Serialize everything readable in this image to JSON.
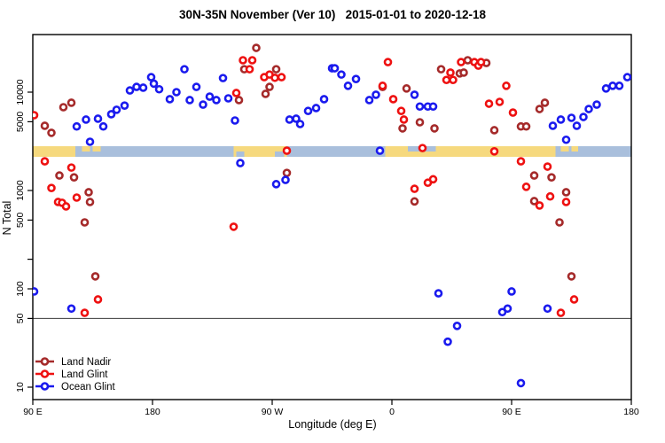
{
  "title": "30N-35N November (Ver 10)   2015-01-01 to 2020-12-18",
  "chart_data": {
    "type": "scatter",
    "title": "30N-35N November (Ver 10)   2015-01-01 to 2020-12-18",
    "xlabel": "Longitude (deg E)",
    "ylabel": "N Total",
    "x_axis": {
      "range": [
        90,
        540
      ],
      "ticks": [
        90,
        180,
        270,
        360,
        450,
        540
      ],
      "tick_labels": [
        "90 E",
        "180",
        "90 W",
        "0",
        "90 E",
        "180"
      ]
    },
    "y_axis": {
      "scale": "log",
      "range": [
        7.5,
        38500
      ],
      "ticks": [
        10,
        50,
        100,
        500,
        1000,
        5000,
        10000
      ],
      "tick_labels": [
        "10",
        "50",
        "100",
        "500",
        "1000",
        "5000",
        "10000"
      ],
      "minor_ticks": [
        200
      ]
    },
    "reference_line_y": 50,
    "grid": "off",
    "legend": {
      "position": "bottom-left",
      "entries": [
        "Land Nadir",
        "Land Glint",
        "Ocean Glint"
      ]
    },
    "map_strip": {
      "description": "land/ocean strip for 30N-35N latitude band vs longitude",
      "land_color": "#F6D97E",
      "ocean_color": "#A9BFDC",
      "n_top": 2820,
      "n_bottom": 2200,
      "segments": [
        {
          "lon0": 90,
          "lon1": 122,
          "type": "land"
        },
        {
          "lon0": 122,
          "lon1": 241,
          "type": "ocean"
        },
        {
          "lon0": 241,
          "lon1": 281,
          "type": "land"
        },
        {
          "lon0": 281,
          "lon1": 355,
          "type": "ocean"
        },
        {
          "lon0": 355,
          "lon1": 483,
          "type": "land"
        },
        {
          "lon0": 483,
          "lon1": 540,
          "type": "ocean"
        }
      ],
      "details": [
        {
          "lon0": 127,
          "lon1": 133,
          "half": "top",
          "type": "land"
        },
        {
          "lon0": 135,
          "lon1": 141,
          "half": "top",
          "type": "land"
        },
        {
          "lon0": 243,
          "lon1": 249,
          "half": "bottom",
          "type": "ocean"
        },
        {
          "lon0": 272,
          "lon1": 279,
          "half": "bottom",
          "type": "ocean"
        },
        {
          "lon0": 372,
          "lon1": 383,
          "half": "top",
          "type": "ocean"
        },
        {
          "lon0": 385,
          "lon1": 393,
          "half": "top",
          "type": "ocean"
        },
        {
          "lon0": 487,
          "lon1": 493,
          "half": "top",
          "type": "land"
        },
        {
          "lon0": 495,
          "lon1": 500,
          "half": "top",
          "type": "land"
        }
      ]
    },
    "series": [
      {
        "name": "Land Nadir",
        "color": "#A52A2A",
        "points": [
          [
            99,
            4550
          ],
          [
            104,
            3860
          ],
          [
            113,
            7030
          ],
          [
            119,
            7800
          ],
          [
            245,
            8300
          ],
          [
            249,
            17100
          ],
          [
            258,
            28200
          ],
          [
            268,
            11300
          ],
          [
            265,
            9600
          ],
          [
            273,
            17100
          ],
          [
            353,
            11300
          ],
          [
            371,
            10900
          ],
          [
            368,
            4280
          ],
          [
            381,
            4940
          ],
          [
            392,
            4280
          ],
          [
            397,
            17100
          ],
          [
            411,
            15500
          ],
          [
            414,
            15800
          ],
          [
            417,
            21100
          ],
          [
            431,
            19800
          ],
          [
            437,
            4100
          ],
          [
            457,
            4480
          ],
          [
            461,
            4480
          ],
          [
            471,
            6740
          ],
          [
            475,
            7800
          ],
          [
            110,
            1420
          ],
          [
            121,
            1360
          ],
          [
            132,
            960
          ],
          [
            133,
            764
          ],
          [
            129,
            474
          ],
          [
            281,
            1510
          ],
          [
            467,
            1420
          ],
          [
            480,
            1360
          ],
          [
            377,
            774
          ],
          [
            491,
            960
          ],
          [
            467,
            780
          ],
          [
            486,
            474
          ],
          [
            137,
            134
          ],
          [
            495,
            134
          ]
        ]
      },
      {
        "name": "Land Glint",
        "color": "#EE1111",
        "points": [
          [
            91,
            5830
          ],
          [
            243,
            9800
          ],
          [
            248,
            21100
          ],
          [
            253,
            17100
          ],
          [
            255,
            21100
          ],
          [
            264,
            14200
          ],
          [
            268,
            15100
          ],
          [
            272,
            14000
          ],
          [
            277,
            14200
          ],
          [
            357,
            20200
          ],
          [
            353,
            11600
          ],
          [
            361,
            8480
          ],
          [
            367,
            6440
          ],
          [
            369,
            5260
          ],
          [
            404,
            15800
          ],
          [
            401,
            13300
          ],
          [
            406,
            13300
          ],
          [
            412,
            20200
          ],
          [
            422,
            20200
          ],
          [
            425,
            18600
          ],
          [
            427,
            20200
          ],
          [
            446,
            11600
          ],
          [
            433,
            7630
          ],
          [
            441,
            7960
          ],
          [
            451,
            6200
          ],
          [
            99,
            1980
          ],
          [
            119,
            1710
          ],
          [
            104,
            1060
          ],
          [
            109,
            764
          ],
          [
            112,
            750
          ],
          [
            115,
            689
          ],
          [
            123,
            847
          ],
          [
            281,
            2540
          ],
          [
            241,
            428
          ],
          [
            383,
            2700
          ],
          [
            437,
            2500
          ],
          [
            457,
            1980
          ],
          [
            477,
            1750
          ],
          [
            461,
            1090
          ],
          [
            377,
            1040
          ],
          [
            387,
            1200
          ],
          [
            391,
            1300
          ],
          [
            479,
            870
          ],
          [
            491,
            764
          ],
          [
            471,
            704
          ],
          [
            139,
            78
          ],
          [
            129,
            57
          ],
          [
            487,
            57
          ],
          [
            497,
            78
          ]
        ]
      },
      {
        "name": "Ocean Glint",
        "color": "#1A1AEE",
        "points": [
          [
            123,
            4480
          ],
          [
            130,
            5260
          ],
          [
            133,
            3130
          ],
          [
            139,
            5370
          ],
          [
            143,
            4480
          ],
          [
            149,
            5960
          ],
          [
            153,
            6620
          ],
          [
            159,
            7300
          ],
          [
            163,
            10400
          ],
          [
            168,
            11300
          ],
          [
            173,
            11100
          ],
          [
            179,
            14200
          ],
          [
            181,
            12200
          ],
          [
            185,
            10700
          ],
          [
            193,
            8480
          ],
          [
            198,
            10000
          ],
          [
            204,
            17100
          ],
          [
            208,
            8300
          ],
          [
            213,
            11300
          ],
          [
            218,
            7470
          ],
          [
            223,
            9000
          ],
          [
            228,
            8300
          ],
          [
            233,
            13900
          ],
          [
            237,
            8650
          ],
          [
            242,
            5150
          ],
          [
            283,
            5260
          ],
          [
            288,
            5370
          ],
          [
            291,
            4740
          ],
          [
            297,
            6440
          ],
          [
            303,
            6890
          ],
          [
            309,
            8480
          ],
          [
            315,
            17500
          ],
          [
            317,
            17500
          ],
          [
            322,
            15100
          ],
          [
            327,
            11600
          ],
          [
            333,
            13600
          ],
          [
            343,
            8300
          ],
          [
            348,
            9410
          ],
          [
            377,
            9410
          ],
          [
            381,
            7140
          ],
          [
            387,
            7140
          ],
          [
            391,
            7140
          ],
          [
            481,
            4550
          ],
          [
            487,
            5260
          ],
          [
            495,
            5480
          ],
          [
            499,
            4550
          ],
          [
            491,
            3280
          ],
          [
            504,
            5590
          ],
          [
            508,
            6740
          ],
          [
            514,
            7470
          ],
          [
            521,
            10900
          ],
          [
            526,
            11600
          ],
          [
            531,
            11600
          ],
          [
            537,
            14200
          ],
          [
            246,
            1900
          ],
          [
            280,
            1280
          ],
          [
            273,
            1160
          ],
          [
            351,
            2540
          ],
          [
            91,
            94
          ],
          [
            119,
            63
          ],
          [
            395,
            90
          ],
          [
            450,
            94
          ],
          [
            443,
            58
          ],
          [
            447,
            63
          ],
          [
            477,
            63
          ],
          [
            409,
            42
          ],
          [
            402,
            29
          ],
          [
            457,
            11
          ]
        ]
      }
    ]
  }
}
